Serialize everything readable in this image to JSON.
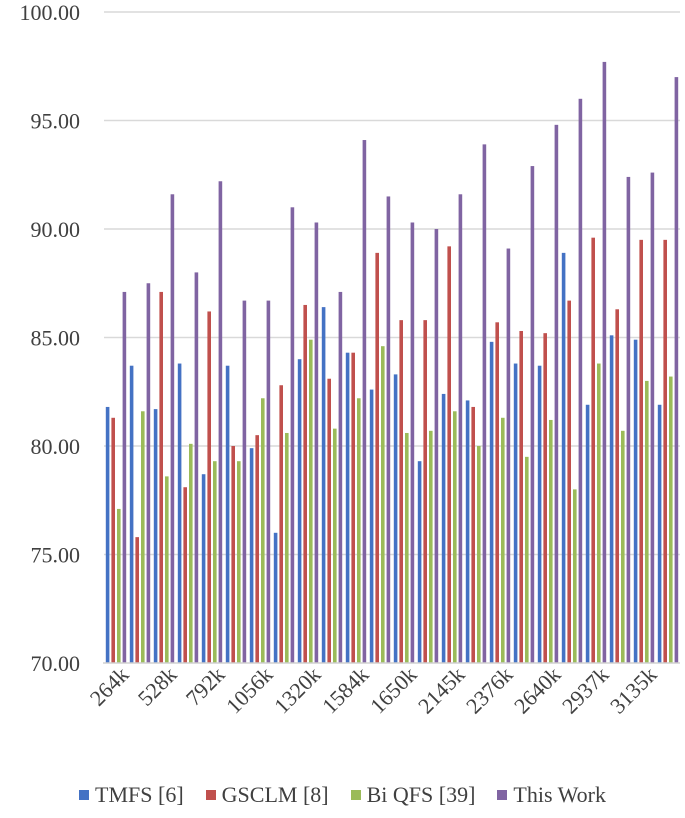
{
  "chart_data": {
    "type": "bar",
    "title": "",
    "xlabel": "",
    "ylabel": "",
    "ylim": [
      70,
      100
    ],
    "yticks": [
      "70.00",
      "75.00",
      "80.00",
      "85.00",
      "90.00",
      "95.00",
      "100.00"
    ],
    "grid": "horizontal",
    "legend_position": "bottom",
    "category_labels_shown": [
      "264k",
      "528k",
      "792k",
      "1056k",
      "1320k",
      "1584k",
      "1650k",
      "2145k",
      "2376k",
      "2640k",
      "2937k",
      "3135k"
    ],
    "n_groups": 23,
    "series": [
      {
        "name": "TMFS [6]",
        "color": "#4472C4",
        "values": [
          81.8,
          83.7,
          81.7,
          83.8,
          78.7,
          83.7,
          79.9,
          76.0,
          84.0,
          86.4,
          84.3,
          82.6,
          83.3,
          79.3,
          82.4,
          82.1,
          84.8,
          83.8,
          83.7,
          88.9,
          81.9,
          85.1,
          84.9
        ]
      },
      {
        "name": "GSCLM [8]",
        "color": "#C0504D",
        "values": [
          81.3,
          75.8,
          87.1,
          78.1,
          86.2,
          80.0,
          80.5,
          82.8,
          86.5,
          83.1,
          84.3,
          88.9,
          85.8,
          85.8,
          89.2,
          81.8,
          85.7,
          85.3,
          85.2,
          86.7,
          89.6,
          86.3,
          89.5
        ]
      },
      {
        "name": "Bi QFS [39]",
        "color": "#9BBB59",
        "values": [
          77.1,
          81.6,
          78.6,
          80.1,
          79.3,
          79.3,
          82.2,
          80.6,
          84.9,
          80.8,
          82.2,
          84.6,
          80.6,
          80.7,
          81.6,
          80.0,
          81.3,
          79.5,
          81.2,
          78.0,
          83.8,
          80.7,
          83.0
        ]
      },
      {
        "name": "This Work",
        "color": "#8064A2",
        "values": [
          87.1,
          87.5,
          91.6,
          88.0,
          92.2,
          86.7,
          86.7,
          91.0,
          90.3,
          87.1,
          94.1,
          91.5,
          90.3,
          90.0,
          91.6,
          93.9,
          89.1,
          92.9,
          94.8,
          96.0,
          97.7,
          92.4,
          92.6
        ]
      }
    ],
    "extra_values": {
      "group_23_series": [
        81.9,
        89.5,
        83.2,
        97.0
      ]
    }
  }
}
